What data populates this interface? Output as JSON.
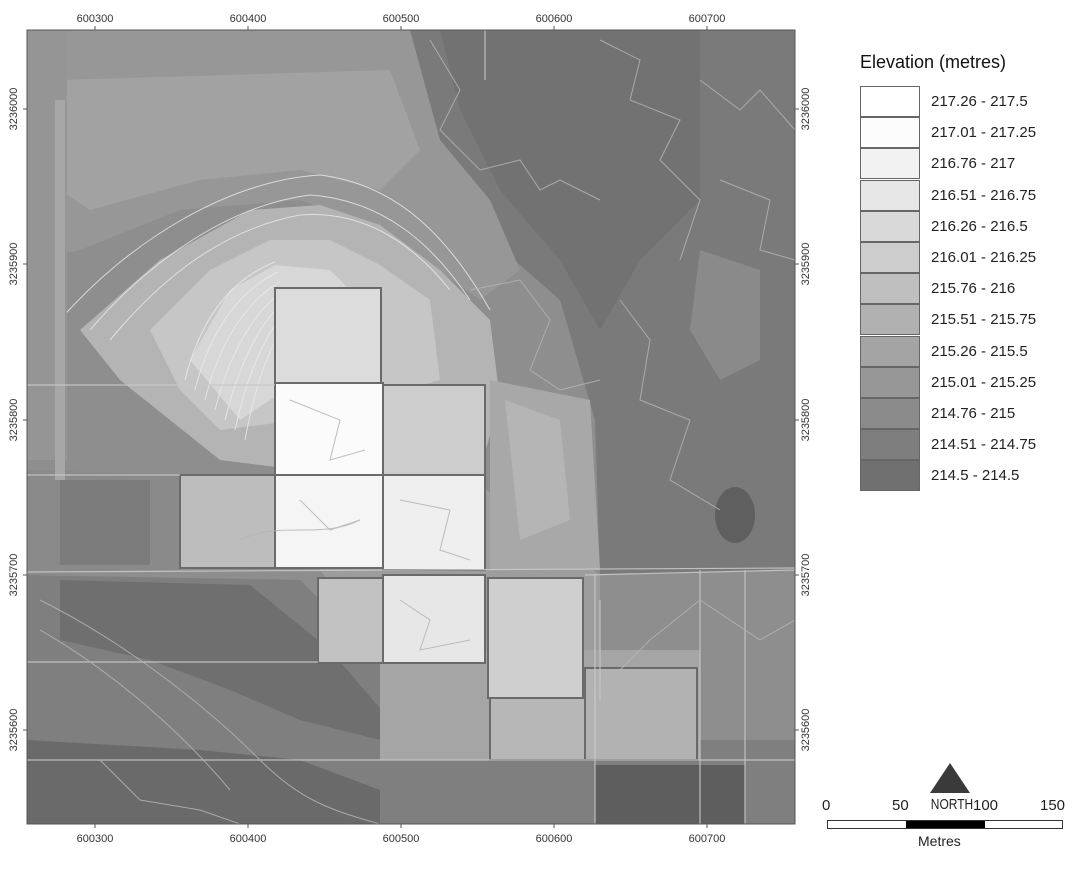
{
  "map": {
    "x_ticks": [
      "600300",
      "600400",
      "600500",
      "600600",
      "600700"
    ],
    "y_ticks": [
      "3236000",
      "3235900",
      "3235800",
      "3235700",
      "3235600"
    ]
  },
  "legend": {
    "title": "Elevation (metres)",
    "classes": [
      {
        "label": "217.26 - 217.5",
        "color": "#ffffff"
      },
      {
        "label": "217.01 - 217.25",
        "color": "#fcfcfc"
      },
      {
        "label": "216.76 - 217",
        "color": "#f2f2f2"
      },
      {
        "label": "216.51 - 216.75",
        "color": "#e6e6e6"
      },
      {
        "label": "216.26 - 216.5",
        "color": "#d9d9d9"
      },
      {
        "label": "216.01 - 216.25",
        "color": "#cdcdcd"
      },
      {
        "label": "215.76 - 216",
        "color": "#bfbfbf"
      },
      {
        "label": "215.51 - 215.75",
        "color": "#b1b1b1"
      },
      {
        "label": "215.26 - 215.5",
        "color": "#a4a4a4"
      },
      {
        "label": "215.01 - 215.25",
        "color": "#979797"
      },
      {
        "label": "214.76 - 215",
        "color": "#8b8b8b"
      },
      {
        "label": "214.51 - 214.75",
        "color": "#7e7e7e"
      },
      {
        "label": "214.5 - 214.5",
        "color": "#707070"
      }
    ]
  },
  "north_arrow": {
    "label": "NORTH"
  },
  "scale_bar": {
    "ticks": [
      "0",
      "50",
      "100",
      "150"
    ],
    "unit": "Metres"
  }
}
